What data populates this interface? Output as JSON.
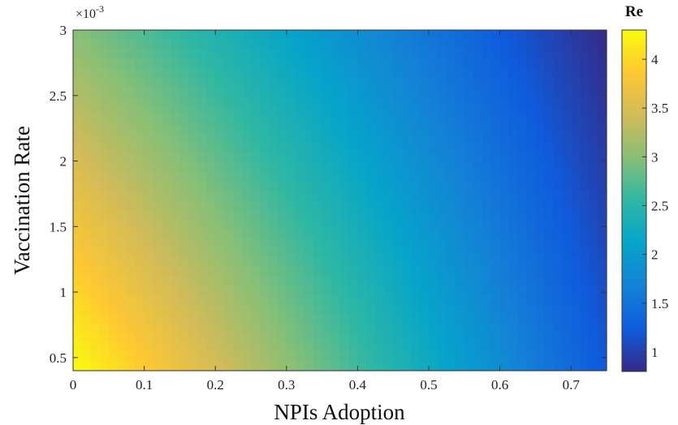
{
  "chart_data": {
    "type": "heatmap",
    "title": "",
    "xlabel": "NPIs Adoption",
    "ylabel": "Vaccination Rate",
    "x_range": [
      0,
      0.75
    ],
    "y_range": [
      0.0004,
      0.003
    ],
    "x_ticks": [
      "0",
      "0.1",
      "0.2",
      "0.3",
      "0.4",
      "0.5",
      "0.6",
      "0.7"
    ],
    "x_tick_values": [
      0,
      0.1,
      0.2,
      0.3,
      0.4,
      0.5,
      0.6,
      0.7
    ],
    "y_ticks": [
      "0.5",
      "1",
      "1.5",
      "2",
      "2.5",
      "3"
    ],
    "y_tick_values": [
      0.0005,
      0.001,
      0.0015,
      0.002,
      0.0025,
      0.003
    ],
    "y_multiplier": "×10",
    "y_multiplier_exponent": "-3",
    "colorbar": {
      "title": "Re",
      "range": [
        0.8,
        4.3
      ],
      "ticks": [
        "1",
        "1.5",
        "2",
        "2.5",
        "3",
        "3.5",
        "4"
      ],
      "tick_values": [
        1,
        1.5,
        2,
        2.5,
        3,
        3.5,
        4
      ],
      "colormap": "parula"
    },
    "z_estimate": {
      "description_of_grid": "Re values sampled at corners",
      "at_x0_y_low": 4.3,
      "at_x0_y_high": 3.0,
      "at_xmax_y_low": 1.2,
      "at_xmax_y_high": 0.8
    },
    "grid": false
  },
  "colormap_stops": [
    "#352a87",
    "#0f5cdd",
    "#1481d6",
    "#06a4ca",
    "#2eb7a4",
    "#87bf77",
    "#d1bb59",
    "#fec832",
    "#f9fb0e"
  ]
}
